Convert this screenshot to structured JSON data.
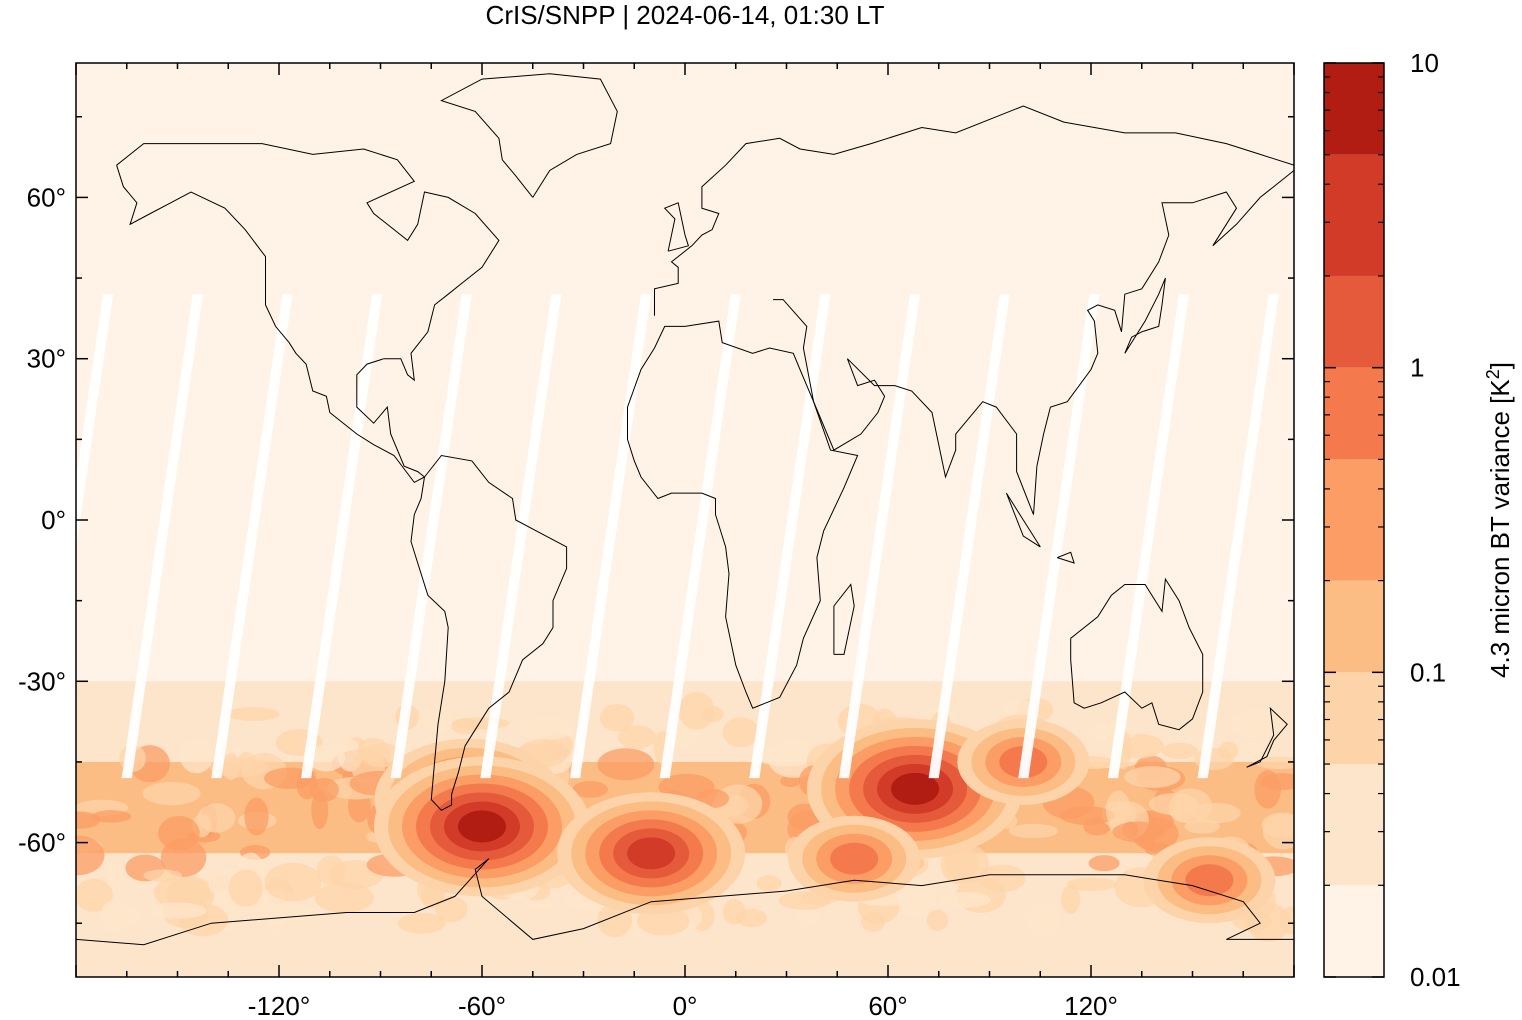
{
  "chart_data": {
    "type": "heatmap",
    "title": "CrIS/SNPP | 2024-06-14, 01:30 LT",
    "xlabel": "",
    "ylabel": "",
    "x_ticks": [
      "-120°",
      "-60°",
      "0°",
      "60°",
      "120°"
    ],
    "x_tick_values": [
      -120,
      -60,
      0,
      60,
      120
    ],
    "y_ticks": [
      "60°",
      "30°",
      "0°",
      "-30°",
      "-60°"
    ],
    "y_tick_values": [
      60,
      30,
      0,
      -30,
      -60
    ],
    "xlim": [
      -180,
      180
    ],
    "ylim": [
      -85,
      85
    ],
    "colorbar": {
      "label": "4.3 micron BT variance [K²]",
      "scale": "log",
      "range": [
        0.01,
        10
      ],
      "tick_labels": [
        "10",
        "1",
        "0.1",
        "0.01"
      ],
      "tick_values": [
        10,
        1,
        0.1,
        0.01
      ],
      "levels": [
        0.01,
        0.02,
        0.05,
        0.1,
        0.2,
        0.5,
        1,
        2,
        5,
        10
      ],
      "colors": [
        "#fef3e6",
        "#fde5cb",
        "#fdd4a9",
        "#fcbd84",
        "#fb9d65",
        "#f47a4d",
        "#e65a3c",
        "#d13b27",
        "#b21d13",
        "#970a05"
      ]
    },
    "regions": [
      {
        "lat_min": 30,
        "lat_max": 85,
        "level": 0
      },
      {
        "lat_min": -30,
        "lat_max": 30,
        "level": 0
      },
      {
        "lat_min": -45,
        "lat_max": -30,
        "level": 1
      },
      {
        "lat_min": -62,
        "lat_max": -45,
        "level": 3
      },
      {
        "lat_min": -85,
        "lat_max": -62,
        "level": 1
      }
    ],
    "hotspots": [
      {
        "lon": -64,
        "lat": -52,
        "value": 2.0
      },
      {
        "lon": -60,
        "lat": -57,
        "value": 5.0
      },
      {
        "lon": -10,
        "lat": -62,
        "value": 2.0
      },
      {
        "lon": 68,
        "lat": -50,
        "value": 5.0
      },
      {
        "lon": 100,
        "lat": -45,
        "value": 0.5
      },
      {
        "lon": 50,
        "lat": -63,
        "value": 0.5
      },
      {
        "lon": 155,
        "lat": -67,
        "value": 0.5
      }
    ],
    "grid": false,
    "legend": "right colorbar"
  }
}
